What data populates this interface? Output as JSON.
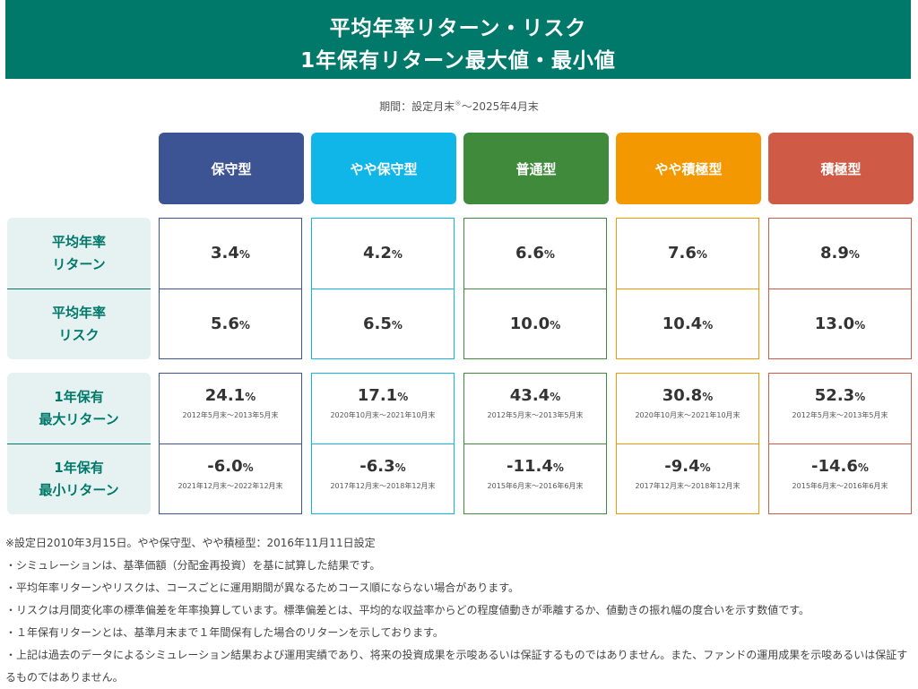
{
  "banner": {
    "line1": "平均年率リターン・リスク",
    "line2": "1年保有リターン最大値・最小値"
  },
  "period": {
    "prefix": "期間：設定月末",
    "mark": "※",
    "suffix": "～2025年4月末"
  },
  "row_labels": {
    "avg_return": [
      "平均年率",
      "リターン"
    ],
    "avg_risk": [
      "平均年率",
      "リスク"
    ],
    "max_return": [
      "1年保有",
      "最大リターン"
    ],
    "min_return": [
      "1年保有",
      "最小リターン"
    ]
  },
  "unit": "%",
  "funds": [
    {
      "name": "保守型",
      "color": "#3d5494",
      "avg_return": "3.4",
      "avg_risk": "5.6",
      "max_return": "24.1",
      "max_period": "2012年5月末～2013年5月末",
      "min_return": "-6.0",
      "min_period": "2021年12月末～2022年12月末"
    },
    {
      "name": "やや保守型",
      "color": "#11b6e8",
      "avg_return": "4.2",
      "avg_risk": "6.5",
      "max_return": "17.1",
      "max_period": "2020年10月末～2021年10月末",
      "min_return": "-6.3",
      "min_period": "2017年12月末～2018年12月末"
    },
    {
      "name": "普通型",
      "color": "#3f8b3b",
      "avg_return": "6.6",
      "avg_risk": "10.0",
      "max_return": "43.4",
      "max_period": "2012年5月末～2013年5月末",
      "min_return": "-11.4",
      "min_period": "2015年6月末～2016年6月末"
    },
    {
      "name": "やや積極型",
      "color": "#f39800",
      "avg_return": "7.6",
      "avg_risk": "10.4",
      "max_return": "30.8",
      "max_period": "2020年10月末～2021年10月末",
      "min_return": "-9.4",
      "min_period": "2017年12月末～2018年12月末"
    },
    {
      "name": "積極型",
      "color": "#cf5a45",
      "avg_return": "8.9",
      "avg_risk": "13.0",
      "max_return": "52.3",
      "max_period": "2012年5月末～2013年5月末",
      "min_return": "-14.6",
      "min_period": "2015年6月末～2016年6月末"
    }
  ],
  "notes": [
    "※設定日2010年3月15日。やや保守型、やや積極型：2016年11月11日設定",
    "・シミュレーションは、基準価額（分配金再投資）を基に試算した結果です。",
    "・平均年率リターンやリスクは、コースごとに運用期間が異なるためコース順にならない場合があります。",
    "・リスクは月間変化率の標準偏差を年率換算しています。標準偏差とは、平均的な収益率からどの程度値動きが乖離するか、値動きの振れ幅の度合いを示す数値です。",
    "・１年保有リターンとは、基準月末まで１年間保有した場合のリターンを示しております。",
    "・上記は過去のデータによるシミュレーション結果および運用実績であり、将来の投資成果を示唆あるいは保証するものではありません。また、ファンドの運用成果を示唆あるいは保証するものではありません。"
  ]
}
